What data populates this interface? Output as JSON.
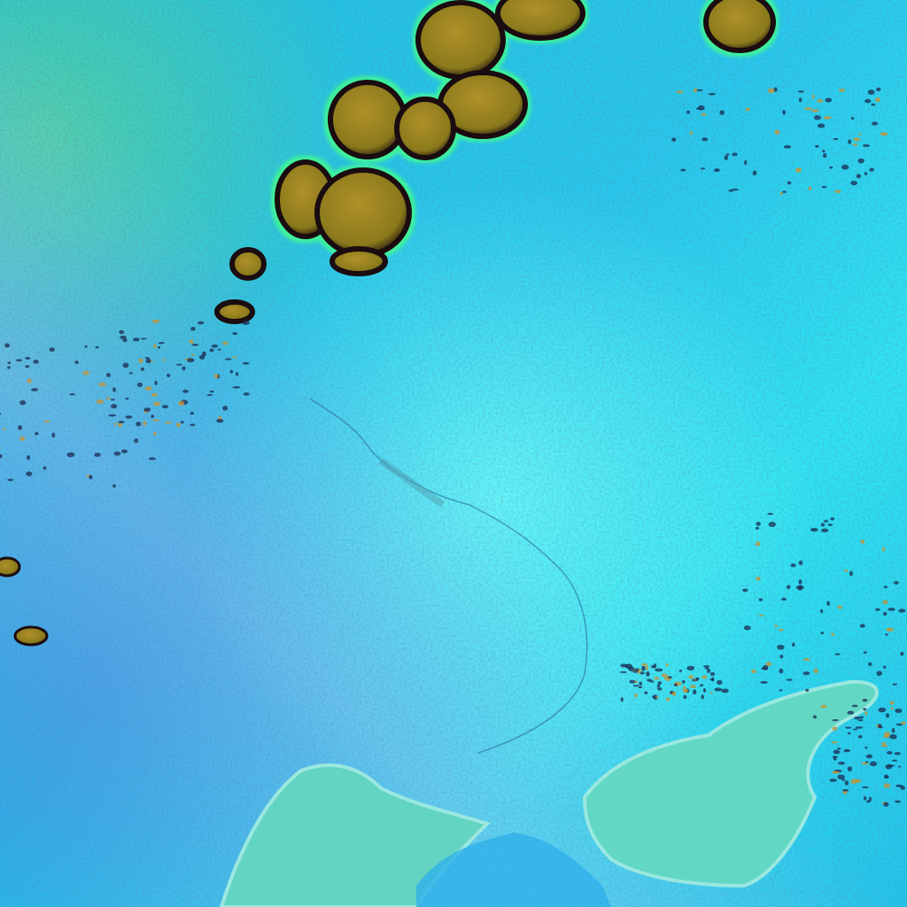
{
  "image": {
    "kind": "false-color satellite imagery",
    "colors": {
      "land_cyan": "#22d4ec",
      "land_bright": "#5af4f4",
      "land_blue": "#2a9ee0",
      "haze_lavender": "#8ac8f0",
      "water_teal": "#62d8c4",
      "cloud_olive": "#a08a22",
      "cloud_edge_dark": "#1a0c10",
      "cloud_halo_green": "#44ff88",
      "speckle_dark": "#1a2a50"
    }
  }
}
